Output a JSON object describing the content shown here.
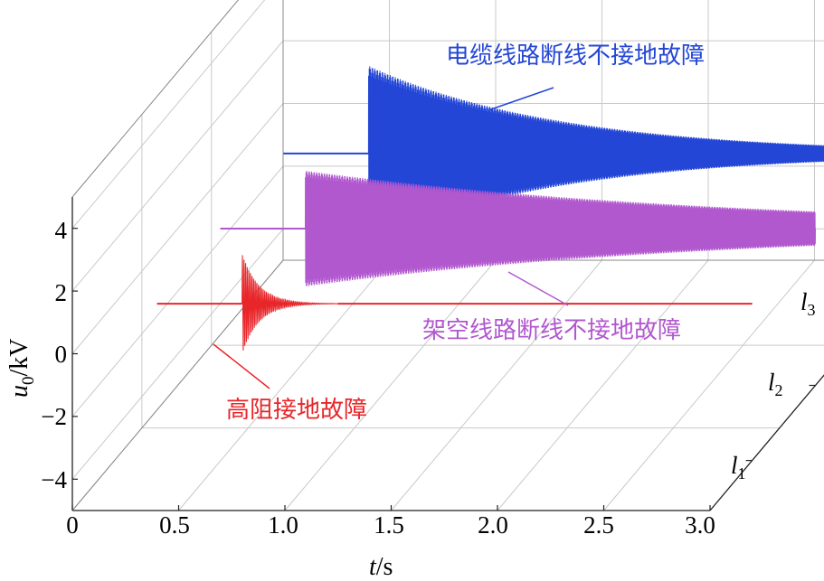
{
  "chart_data": {
    "type": "line",
    "projection": "3d-waterfall",
    "title": "",
    "xlabel": {
      "italic": "t",
      "rest": "/s"
    },
    "ylabel": {
      "italic": "u",
      "sub": "0",
      "rest": "/kV"
    },
    "xlim": [
      0,
      3.0
    ],
    "zlim": [
      -5,
      5
    ],
    "grid": true,
    "x_ticks": [
      "0",
      "0.5",
      "1.0",
      "1.5",
      "2.0",
      "2.5",
      "3.0"
    ],
    "z_ticks": [
      "4",
      "2",
      "0",
      "−2",
      "−4"
    ],
    "depth_ticks": [
      {
        "italic": "l",
        "sub": "1"
      },
      {
        "italic": "l",
        "sub": "2"
      },
      {
        "italic": "l",
        "sub": "3"
      }
    ],
    "series": [
      {
        "name": "高阻接地故障",
        "color": "#e8262a",
        "depth": "l1",
        "start": 0.2,
        "fault_time": 0.6,
        "end": 3.0,
        "amplitude": 1.6,
        "decay_time": 0.08
      },
      {
        "name": "架空线路断线不接地故障",
        "color": "#b158cf",
        "depth": "l2",
        "start": 0.2,
        "fault_time": 0.6,
        "end": 3.0,
        "amplitude": 1.85,
        "amplitude_end": 0.55
      },
      {
        "name": "电缆线路断线不接地故障",
        "color": "#2346d6",
        "depth": "l3",
        "start": 0.2,
        "fault_time": 0.6,
        "end": 3.0,
        "amplitude": 2.8,
        "amplitude_end": 0.2
      }
    ]
  }
}
